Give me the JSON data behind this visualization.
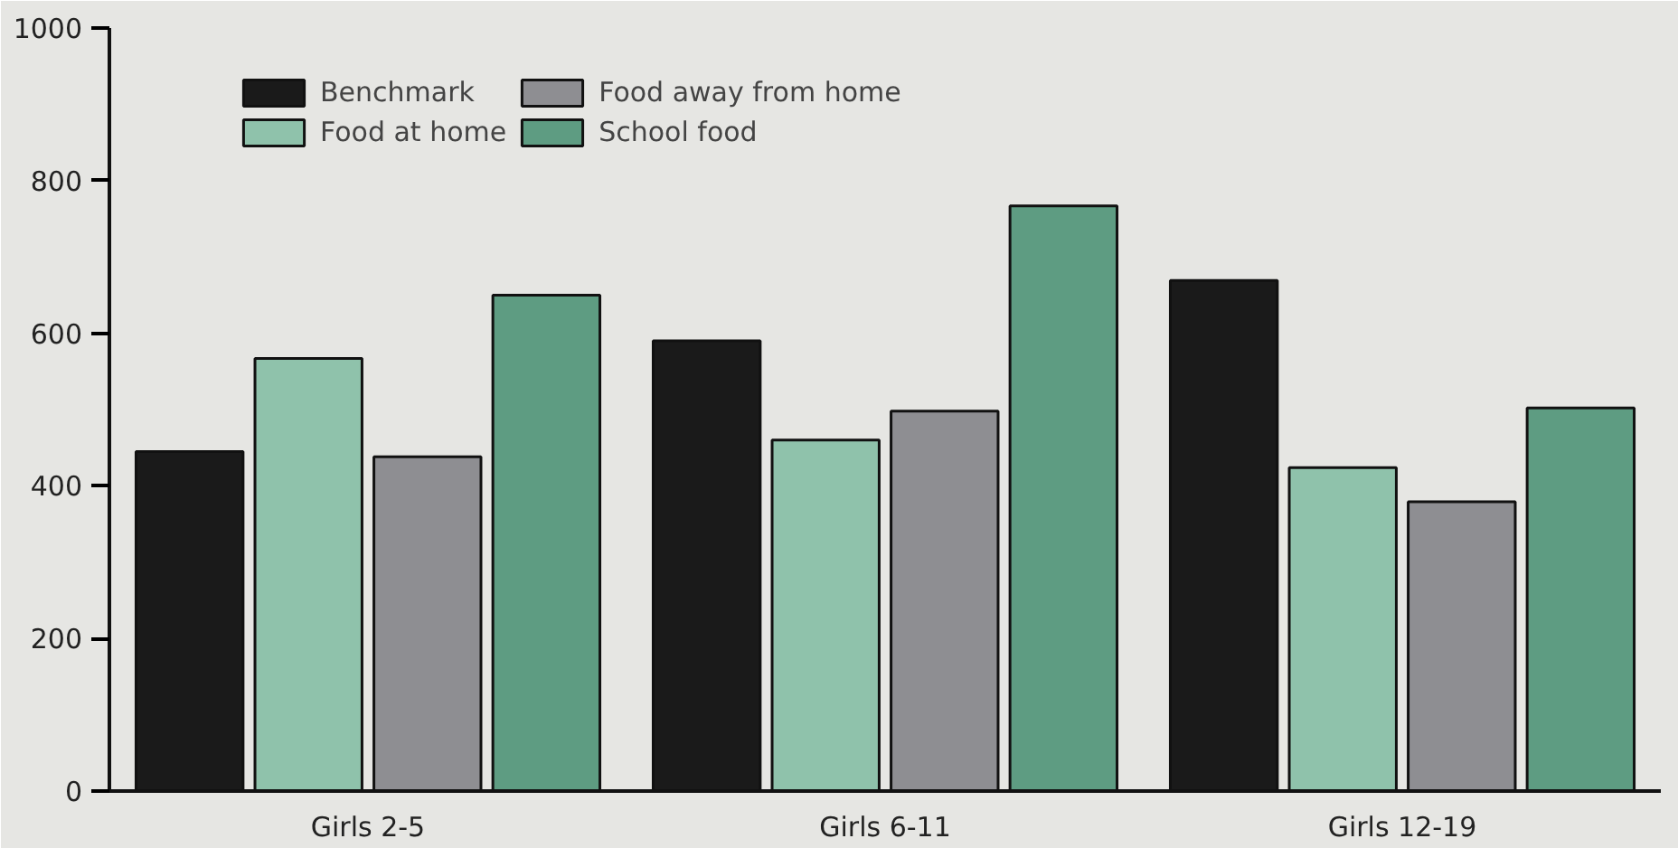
{
  "chart_data": {
    "type": "bar",
    "categories": [
      "Girls 2-5",
      "Girls 6-11",
      "Girls 12-19"
    ],
    "series": [
      {
        "name": "Benchmark",
        "color": "#1a1a1a",
        "values": [
          445,
          590,
          669
        ]
      },
      {
        "name": "Food at home",
        "color": "#8fc2ab",
        "values": [
          567,
          460,
          424
        ]
      },
      {
        "name": "Food away from home",
        "color": "#8e8e92",
        "values": [
          438,
          498,
          379
        ]
      },
      {
        "name": "School food",
        "color": "#5e9c82",
        "values": [
          650,
          767,
          502
        ]
      }
    ],
    "ylim": [
      0,
      1000
    ],
    "yticks": [
      0,
      200,
      400,
      600,
      800,
      1000
    ],
    "legend": "top left"
  }
}
